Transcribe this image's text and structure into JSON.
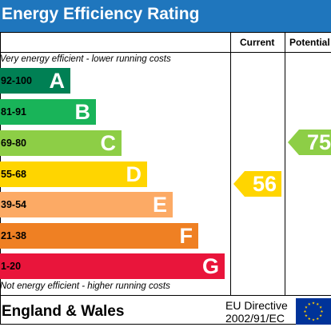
{
  "title": "Energy Efficiency Rating",
  "columns": {
    "current": "Current",
    "potential": "Potential"
  },
  "top_note": "Very energy efficient - lower running costs",
  "bottom_note": "Not energy efficient - higher running costs",
  "bands": [
    {
      "range": "92-100",
      "letter": "A",
      "color": "#008054"
    },
    {
      "range": "81-91",
      "letter": "B",
      "color": "#19b459"
    },
    {
      "range": "69-80",
      "letter": "C",
      "color": "#8dce46"
    },
    {
      "range": "55-68",
      "letter": "D",
      "color": "#ffd500"
    },
    {
      "range": "39-54",
      "letter": "E",
      "color": "#fcaa65"
    },
    {
      "range": "21-38",
      "letter": "F",
      "color": "#ef8023"
    },
    {
      "range": "1-20",
      "letter": "G",
      "color": "#e9153b"
    }
  ],
  "current_rating": {
    "value": "56",
    "band": "D",
    "color": "#ffd500"
  },
  "potential_rating": {
    "value": "75",
    "band": "C",
    "color": "#8dce46"
  },
  "footer": {
    "country": "England & Wales",
    "directive_line1": "EU Directive",
    "directive_line2": "2002/91/EC"
  },
  "eu_flag": {
    "icon": "eu-flag-icon",
    "background": "#003399",
    "stars": "#ffcc00"
  }
}
